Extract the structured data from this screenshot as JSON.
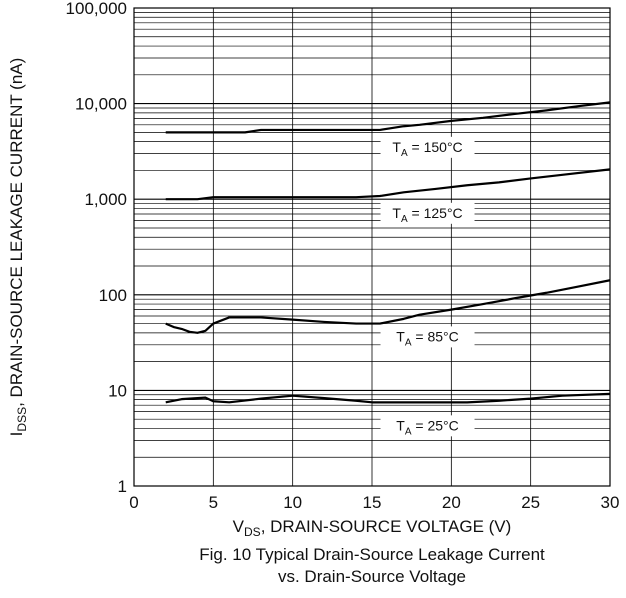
{
  "chart_data": {
    "type": "line",
    "x_axis": {
      "label_main": "V",
      "label_sub": "DS",
      "label_rest": ", DRAIN-SOURCE VOLTAGE (V)",
      "range": [
        0,
        30
      ],
      "ticks": [
        0,
        5,
        10,
        15,
        20,
        25,
        30
      ],
      "tick_labels": [
        "0",
        "5",
        "10",
        "15",
        "20",
        "25",
        "30"
      ]
    },
    "y_axis": {
      "label_main": "I",
      "label_sub": "DSS",
      "label_rest": ", DRAIN-SOURCE LEAKAGE CURRENT (nA)",
      "scale": "log",
      "range": [
        1,
        100000
      ],
      "ticks": [
        1,
        10,
        100,
        1000,
        10000,
        100000
      ],
      "tick_labels": [
        "1",
        "10",
        "100",
        "1,000",
        "10,000",
        "100,000"
      ]
    },
    "grid": true,
    "caption_line1": "Fig. 10 Typical Drain-Source Leakage Current",
    "caption_line2": "vs. Drain-Source Voltage",
    "series": [
      {
        "label_main": "T",
        "label_sub": "A",
        "label_rest": " = 150°C",
        "x": [
          2,
          4,
          7,
          8,
          10,
          12,
          14,
          15.5,
          17,
          18,
          20,
          22,
          24,
          26,
          28,
          30
        ],
        "y": [
          5000,
          5000,
          5000,
          5300,
          5300,
          5300,
          5300,
          5300,
          5800,
          6000,
          6600,
          7100,
          7800,
          8500,
          9400,
          10300
        ]
      },
      {
        "label_main": "T",
        "label_sub": "A",
        "label_rest": " = 125°C",
        "x": [
          2,
          4,
          5,
          7,
          10,
          12,
          14,
          15.5,
          17,
          19,
          21,
          23,
          25,
          27,
          30
        ],
        "y": [
          1000,
          1000,
          1050,
          1050,
          1050,
          1050,
          1050,
          1080,
          1180,
          1280,
          1400,
          1500,
          1650,
          1800,
          2050
        ]
      },
      {
        "label_main": "T",
        "label_sub": "A",
        "label_rest": " = 85°C",
        "x": [
          2,
          2.5,
          3,
          3.5,
          4,
          4.5,
          5,
          6,
          8,
          10,
          12,
          14,
          15.5,
          17,
          18,
          20,
          22,
          24,
          26,
          28,
          30
        ],
        "y": [
          50,
          46,
          44,
          41,
          40,
          42,
          50,
          58,
          58,
          55,
          52,
          50,
          50,
          56,
          62,
          70,
          80,
          92,
          105,
          122,
          142
        ]
      },
      {
        "label_main": "T",
        "label_sub": "A",
        "label_rest": " = 25°C",
        "x": [
          2,
          3,
          4.5,
          5,
          6,
          8,
          10,
          12,
          14,
          15,
          18,
          21,
          23,
          25,
          27,
          30
        ],
        "y": [
          7.5,
          8.1,
          8.4,
          7.7,
          7.5,
          8.2,
          8.8,
          8.3,
          7.8,
          7.5,
          7.5,
          7.5,
          7.8,
          8.2,
          8.8,
          9.2
        ]
      }
    ]
  }
}
